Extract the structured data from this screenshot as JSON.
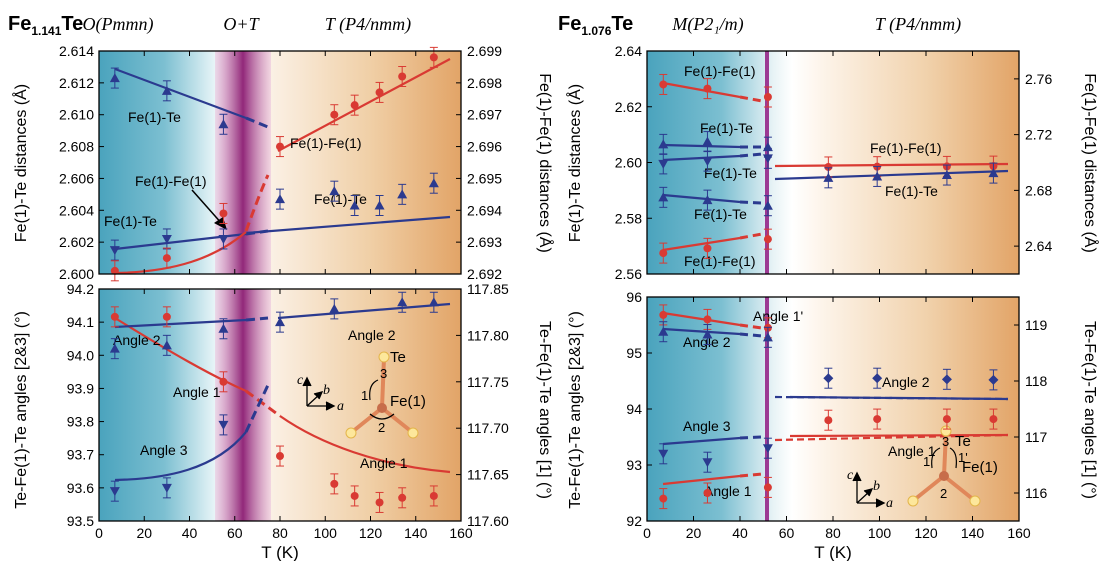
{
  "chart_data": [
    {
      "type": "scatter",
      "compound": {
        "base": "Fe",
        "sub": "1.141",
        "rest": "Te"
      },
      "phase_labels": [
        "O(Pmmn)",
        "O+T",
        "T (P4/nmm)"
      ],
      "x_label": "T (K)",
      "x_ticks": [
        "0",
        "20",
        "40",
        "60",
        "80",
        "100",
        "120",
        "140",
        "160"
      ],
      "xlim": [
        0,
        160
      ],
      "top": {
        "left_ylabel": "Fe(1)-Te distances (Å)",
        "right_ylabel": "Fe(1)-Fe(1) distances (Å)",
        "ylim_left": [
          2.6,
          2.614
        ],
        "ylim_right": [
          2.692,
          2.699
        ],
        "left_ticks": [
          "2.600",
          "2.602",
          "2.604",
          "2.606",
          "2.608",
          "2.610",
          "2.612",
          "2.614"
        ],
        "right_ticks": [
          "2.692",
          "2.693",
          "2.694",
          "2.695",
          "2.696",
          "2.697",
          "2.698",
          "2.699"
        ],
        "series": [
          {
            "name": "Fe(1)-Te",
            "axis": "left",
            "color": "#2b3a8f",
            "marker": "triangle-up",
            "x": [
              7,
              30,
              55
            ],
            "y": [
              2.6123,
              2.6115,
              2.6094
            ]
          },
          {
            "name": "Fe(1)-Te",
            "axis": "left",
            "color": "#2b3a8f",
            "marker": "triangle-down",
            "x": [
              7,
              30,
              55
            ],
            "y": [
              2.6015,
              2.6022,
              2.6022
            ]
          },
          {
            "name": "Fe(1)-Te",
            "axis": "left",
            "color": "#2b3a8f",
            "marker": "triangle-up",
            "x": [
              80,
              104,
              113,
              124,
              134,
              148
            ],
            "y": [
              2.6047,
              2.6052,
              2.6043,
              2.6043,
              2.605,
              2.6057
            ]
          },
          {
            "name": "Fe(1)-Fe(1)",
            "axis": "right",
            "color": "#d93a33",
            "marker": "circle",
            "x": [
              7,
              30,
              55,
              80,
              104,
              113,
              124,
              134,
              148
            ],
            "y": [
              2.6921,
              2.6925,
              2.6939,
              2.696,
              2.697,
              2.6973,
              2.6977,
              2.6982,
              2.6988
            ]
          }
        ],
        "annotations": [
          "Fe(1)-Te",
          "Fe(1)-Fe(1)",
          "Fe(1)-Fe(1)",
          "Fe(1)-Te",
          "Fe(1)-Te"
        ]
      },
      "bottom": {
        "left_ylabel": "Te-Fe(1)-Te angles [2&3] (°)",
        "right_ylabel": "Te-Fe(1)-Te angles [1] (°)",
        "ylim_left": [
          93.5,
          94.2
        ],
        "ylim_right": [
          117.6,
          117.85
        ],
        "left_ticks": [
          "93.5",
          "93.6",
          "93.7",
          "93.8",
          "93.9",
          "94.0",
          "94.1",
          "94.2"
        ],
        "right_ticks": [
          "117.60",
          "117.65",
          "117.70",
          "117.75",
          "117.80",
          "117.85"
        ],
        "series": [
          {
            "name": "Angle 1",
            "axis": "right",
            "color": "#d93a33",
            "marker": "circle",
            "x": [
              7,
              30,
              55,
              80,
              104,
              113,
              124,
              134,
              148
            ],
            "y": [
              117.82,
              117.82,
              117.75,
              117.67,
              117.64,
              117.627,
              117.62,
              117.625,
              117.627
            ]
          },
          {
            "name": "Angle 2",
            "axis": "left",
            "color": "#2b3a8f",
            "marker": "triangle-up",
            "x": [
              7,
              30,
              55,
              80,
              104,
              134,
              148
            ],
            "y": [
              94.02,
              94.03,
              94.08,
              94.1,
              94.14,
              94.16,
              94.16
            ]
          },
          {
            "name": "Angle 3",
            "axis": "left",
            "color": "#2b3a8f",
            "marker": "triangle-down",
            "x": [
              7,
              30,
              55
            ],
            "y": [
              93.59,
              93.6,
              93.79
            ]
          }
        ],
        "inset_labels": {
          "te": "Te",
          "fe": "Fe(1)",
          "a": "a",
          "b": "b",
          "c": "c",
          "n1": "1",
          "n2": "2",
          "n3": "3"
        }
      }
    },
    {
      "type": "scatter",
      "compound": {
        "base": "Fe",
        "sub": "1.076",
        "rest": "Te"
      },
      "phase_labels": [
        "M(P2₁/m)",
        "T (P4/nmm)"
      ],
      "x_label": "T (K)",
      "x_ticks": [
        "0",
        "20",
        "40",
        "60",
        "80",
        "100",
        "120",
        "140",
        "160"
      ],
      "xlim": [
        0,
        160
      ],
      "top": {
        "left_ylabel": "Fe(1)-Te distances (Å)",
        "right_ylabel": "Fe(1)-Fe(1) distances (Å)",
        "ylim_left": [
          2.56,
          2.64
        ],
        "ylim_right": [
          2.62,
          2.78
        ],
        "left_ticks": [
          "2.56",
          "2.58",
          "2.60",
          "2.62",
          "2.64"
        ],
        "right_ticks": [
          "2.64",
          "2.68",
          "2.72",
          "2.76"
        ],
        "series": [
          {
            "name": "Fe(1)-Fe(1)",
            "axis": "left",
            "color": "#d93a33",
            "marker": "circle",
            "x": [
              7,
              26,
              52
            ],
            "y": [
              2.628,
              2.6265,
              2.6235
            ]
          },
          {
            "name": "Fe(1)-Te",
            "axis": "left",
            "color": "#2b3a8f",
            "marker": "triangle-up",
            "x": [
              7,
              26,
              52
            ],
            "y": [
              2.6065,
              2.6075,
              2.6055
            ]
          },
          {
            "name": "Fe(1)-Te",
            "axis": "left",
            "color": "#2b3a8f",
            "marker": "triangle-down",
            "x": [
              7,
              26,
              52
            ],
            "y": [
              2.5995,
              2.6005,
              2.6015
            ]
          },
          {
            "name": "Fe(1)-Te",
            "axis": "left",
            "color": "#2b3a8f",
            "marker": "triangle-up",
            "x": [
              7,
              26,
              52
            ],
            "y": [
              2.5875,
              2.5865,
              2.5845
            ]
          },
          {
            "name": "Fe(1)-Fe(1)",
            "axis": "left",
            "color": "#d93a33",
            "marker": "circle",
            "x": [
              7,
              26,
              52
            ],
            "y": [
              2.5675,
              2.5692,
              2.5725
            ]
          },
          {
            "name": "Fe(1)-Fe(1)",
            "axis": "right",
            "color": "#d93a33",
            "marker": "circle",
            "x": [
              78,
              99,
              129,
              149
            ],
            "y": [
              2.6968,
              2.697,
              2.6972,
              2.6974
            ]
          },
          {
            "name": "Fe(1)-Te",
            "axis": "left",
            "color": "#2b3a8f",
            "marker": "triangle-up",
            "x": [
              78,
              99,
              129,
              149
            ],
            "y": [
              2.5945,
              2.595,
              2.5955,
              2.5962
            ]
          }
        ],
        "annotations": [
          "Fe(1)-Fe(1)",
          "Fe(1)-Te",
          "Fe(1)-Te",
          "Fe(1)-Te",
          "Fe(1)-Fe(1)",
          "Fe(1)-Fe(1)",
          "Fe(1)-Te"
        ]
      },
      "bottom": {
        "left_ylabel": "Te-Fe(1)-Te angles [2&3] (°)",
        "right_ylabel": "Te-Fe(1)-Te angles [1] (°)",
        "ylim_left": [
          92,
          96
        ],
        "ylim_right": [
          115.5,
          119.5
        ],
        "left_ticks": [
          "92",
          "93",
          "94",
          "95",
          "96"
        ],
        "right_ticks": [
          "116",
          "117",
          "118",
          "119"
        ],
        "series": [
          {
            "name": "Angle 1'",
            "axis": "left",
            "color": "#d93a33",
            "marker": "circle",
            "x": [
              7,
              26,
              52
            ],
            "y": [
              95.68,
              95.6,
              95.45
            ]
          },
          {
            "name": "Angle 2",
            "axis": "left",
            "color": "#2b3a8f",
            "marker": "triangle-up",
            "x": [
              7,
              26,
              52
            ],
            "y": [
              95.38,
              95.33,
              95.28
            ]
          },
          {
            "name": "Angle 3",
            "axis": "left",
            "color": "#2b3a8f",
            "marker": "triangle-down",
            "x": [
              7,
              26,
              52
            ],
            "y": [
              93.2,
              93.05,
              93.3
            ]
          },
          {
            "name": "Angle 1",
            "axis": "left",
            "color": "#d93a33",
            "marker": "circle",
            "x": [
              7,
              26,
              52
            ],
            "y": [
              92.4,
              92.5,
              92.6
            ]
          },
          {
            "name": "Angle 2",
            "axis": "right",
            "color": "#2b3a8f",
            "marker": "diamond",
            "x": [
              78,
              99,
              129,
              149
            ],
            "y": [
              118.05,
              118.05,
              118.03,
              118.02
            ]
          },
          {
            "name": "Angle 1",
            "axis": "right",
            "color": "#d93a33",
            "marker": "circle",
            "x": [
              78,
              99,
              129,
              149
            ],
            "y": [
              117.3,
              117.32,
              117.32,
              117.32
            ]
          }
        ],
        "inset_labels": {
          "te": "Te",
          "fe": "Fe(1)",
          "a": "a",
          "b": "b",
          "c": "c",
          "n1": "1",
          "n1p": "1'",
          "n2": "2",
          "n3": "3"
        }
      }
    }
  ]
}
